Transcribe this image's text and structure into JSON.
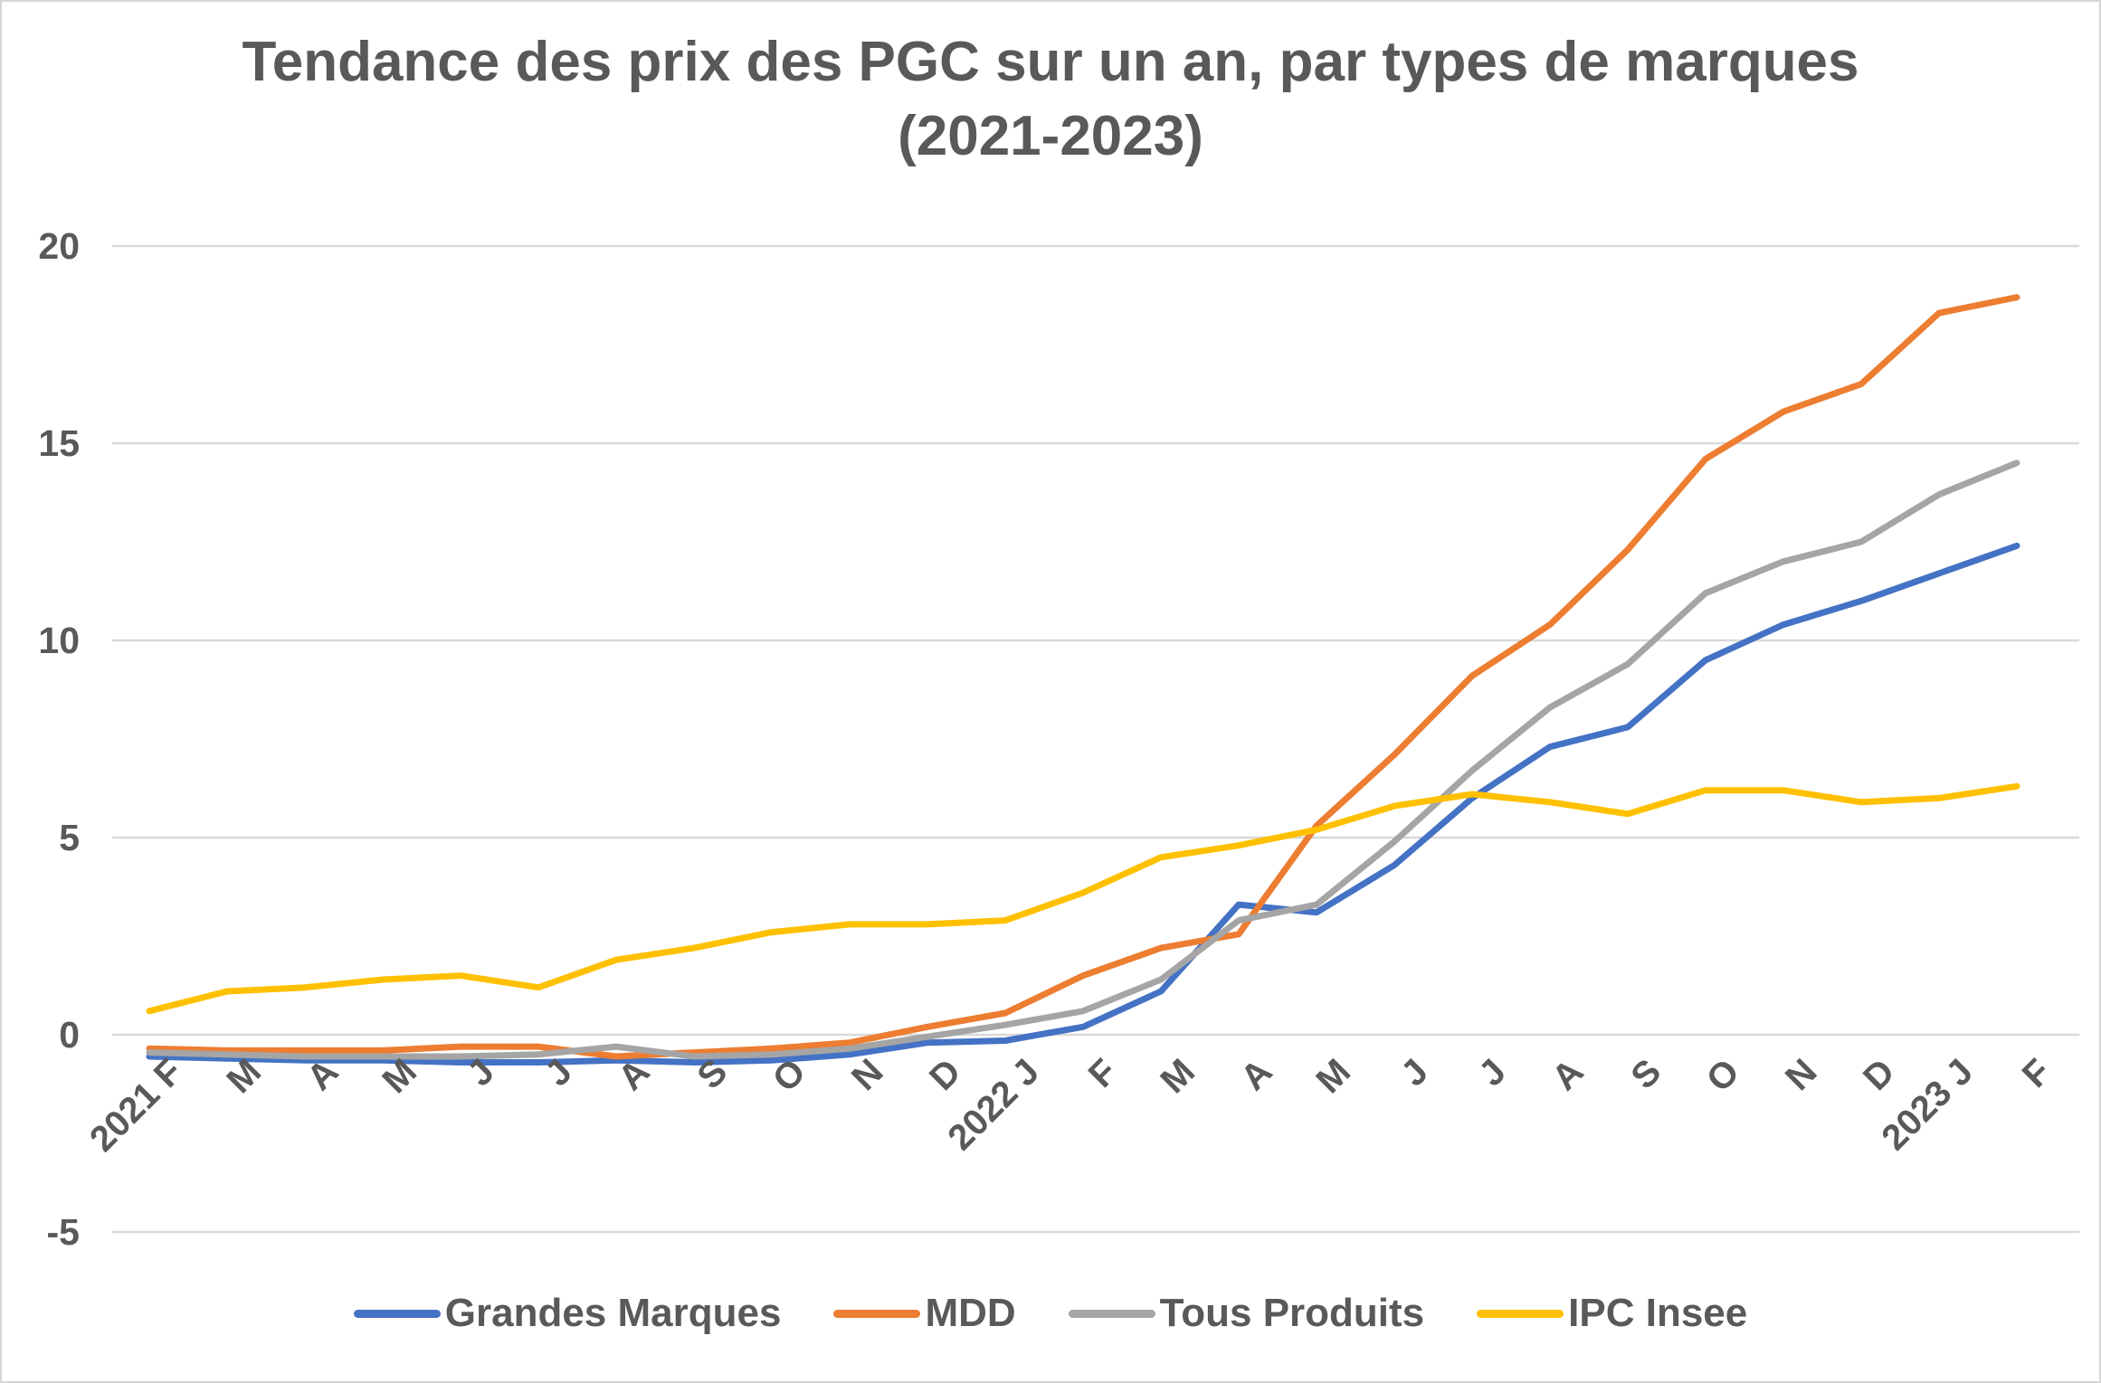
{
  "title": {
    "line1": "Tendance des prix des PGC sur un an, par types de marques",
    "line2": "(2021-2023)"
  },
  "colors": {
    "grandes_marques": "#4472C4",
    "mdd": "#ED7D31",
    "tous_produits": "#A5A5A5",
    "ipc_insee": "#FFC000",
    "gridline": "#D9D9D9",
    "text": "#595959"
  },
  "chart_data": {
    "type": "line",
    "title": "Tendance des prix des PGC sur un an, par types de marques (2021-2023)",
    "xlabel": "",
    "ylabel": "",
    "ylim": [
      -5,
      20
    ],
    "yticks": [
      20,
      15,
      10,
      5,
      0,
      -5
    ],
    "grid": true,
    "legend_position": "bottom",
    "categories": [
      "2021 F",
      "M",
      "A",
      "M",
      "J",
      "J",
      "A",
      "S",
      "O",
      "N",
      "D",
      "2022 J",
      "F",
      "M",
      "A",
      "M",
      "J",
      "J",
      "A",
      "S",
      "O",
      "N",
      "D",
      "2023 J",
      "F"
    ],
    "series": [
      {
        "name": "Grandes Marques",
        "color": "#4472C4",
        "values": [
          -0.55,
          -0.6,
          -0.65,
          -0.65,
          -0.7,
          -0.7,
          -0.65,
          -0.7,
          -0.65,
          -0.5,
          -0.2,
          -0.15,
          0.2,
          1.1,
          3.3,
          3.1,
          4.3,
          6.0,
          7.3,
          7.8,
          9.5,
          10.4,
          11.0,
          11.7,
          12.4
        ]
      },
      {
        "name": "MDD",
        "color": "#ED7D31",
        "values": [
          -0.35,
          -0.4,
          -0.4,
          -0.4,
          -0.3,
          -0.3,
          -0.55,
          -0.45,
          -0.35,
          -0.2,
          0.2,
          0.55,
          1.5,
          2.2,
          2.55,
          5.3,
          7.1,
          9.1,
          10.4,
          12.3,
          14.6,
          15.8,
          16.5,
          18.3,
          18.7
        ]
      },
      {
        "name": "Tous Produits",
        "color": "#A5A5A5",
        "values": [
          -0.45,
          -0.5,
          -0.55,
          -0.55,
          -0.55,
          -0.5,
          -0.3,
          -0.55,
          -0.5,
          -0.35,
          -0.05,
          0.25,
          0.6,
          1.4,
          2.9,
          3.3,
          4.9,
          6.7,
          8.3,
          9.4,
          11.2,
          12.0,
          12.5,
          13.7,
          14.5
        ]
      },
      {
        "name": "IPC Insee",
        "color": "#FFC000",
        "values": [
          0.6,
          1.1,
          1.2,
          1.4,
          1.5,
          1.2,
          1.9,
          2.2,
          2.6,
          2.8,
          2.8,
          2.9,
          3.6,
          4.5,
          4.8,
          5.2,
          5.8,
          6.1,
          5.9,
          5.6,
          6.2,
          6.2,
          5.9,
          6.0,
          6.3
        ]
      }
    ]
  }
}
